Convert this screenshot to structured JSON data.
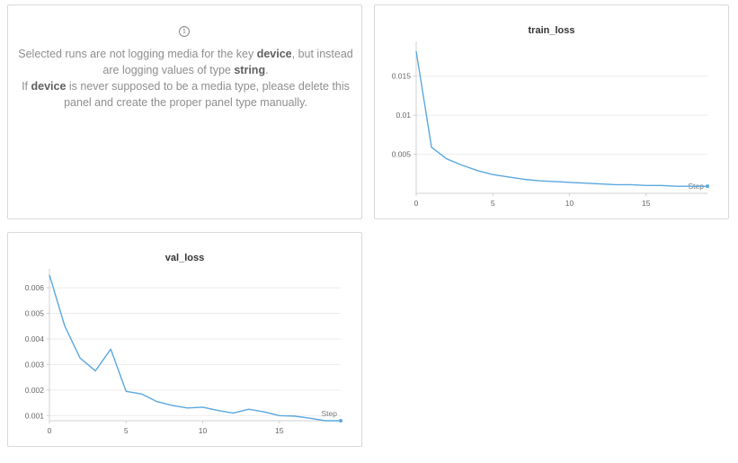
{
  "device_panel": {
    "info_icon": "info-icon",
    "line1_prefix": "Selected runs are not logging media for the key ",
    "line1_key": "device",
    "line1_mid": ", but instead are logging values of type ",
    "line1_type": "string",
    "line1_suffix": ".",
    "line2_prefix": "If ",
    "line2_key": "device",
    "line2_suffix": " is never supposed to be a media type, please delete this panel and create the proper panel type manually."
  },
  "chart_data": [
    {
      "type": "line",
      "title": "train_loss",
      "xlabel": "Step",
      "ylabel": "",
      "xlim": [
        0,
        19
      ],
      "ylim": [
        0,
        0.019
      ],
      "x_ticks": [
        0,
        5,
        10,
        15
      ],
      "x_tick_labels": [
        "0",
        "5",
        "10",
        "15"
      ],
      "y_ticks": [
        0.005,
        0.01,
        0.015
      ],
      "y_tick_labels": [
        "0.005",
        "0.01",
        "0.015"
      ],
      "grid": true,
      "line_color": "#5ba8e0",
      "x": [
        0,
        1,
        2,
        3,
        4,
        5,
        6,
        7,
        8,
        9,
        10,
        11,
        12,
        13,
        14,
        15,
        16,
        17,
        18,
        19
      ],
      "values": [
        0.0182,
        0.0059,
        0.0044,
        0.0036,
        0.0029,
        0.0024,
        0.0021,
        0.0018,
        0.0016,
        0.0015,
        0.0014,
        0.0013,
        0.0012,
        0.0011,
        0.0011,
        0.001,
        0.001,
        0.0009,
        0.0009,
        0.0009
      ]
    },
    {
      "type": "line",
      "title": "val_loss",
      "xlabel": "Step",
      "ylabel": "",
      "xlim": [
        0,
        19
      ],
      "ylim": [
        0.0008,
        0.0066
      ],
      "x_ticks": [
        0,
        5,
        10,
        15
      ],
      "x_tick_labels": [
        "0",
        "5",
        "10",
        "15"
      ],
      "y_ticks": [
        0.001,
        0.002,
        0.003,
        0.004,
        0.005,
        0.006
      ],
      "y_tick_labels": [
        "0.001",
        "0.002",
        "0.003",
        "0.004",
        "0.005",
        "0.006"
      ],
      "grid": true,
      "line_color": "#5ba8e0",
      "x": [
        0,
        1,
        2,
        3,
        4,
        5,
        6,
        7,
        8,
        9,
        10,
        11,
        12,
        13,
        14,
        15,
        16,
        17,
        18,
        19
      ],
      "values": [
        0.0065,
        0.0045,
        0.00325,
        0.00275,
        0.0036,
        0.00195,
        0.00185,
        0.00155,
        0.0014,
        0.0013,
        0.00133,
        0.0012,
        0.0011,
        0.00125,
        0.00115,
        0.001,
        0.00098,
        0.0009,
        0.0008,
        0.0008
      ]
    }
  ]
}
